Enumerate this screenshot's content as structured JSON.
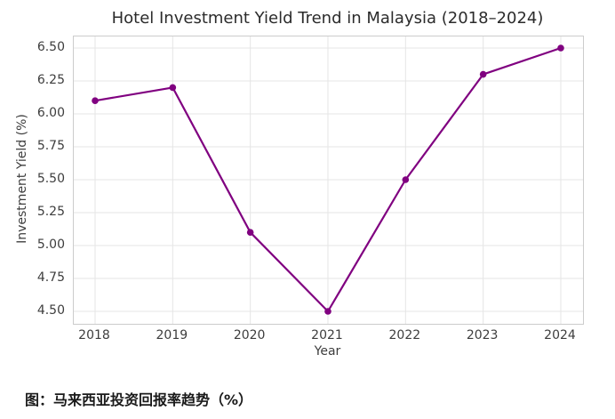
{
  "figure": {
    "caption": "图：马来西亚投资回报率趋势（%）"
  },
  "chart_data": {
    "type": "line",
    "title": "Hotel Investment Yield Trend in Malaysia (2018–2024)",
    "xlabel": "Year",
    "ylabel": "Investment Yield (%)",
    "x": [
      2018,
      2019,
      2020,
      2021,
      2022,
      2023,
      2024
    ],
    "series": [
      {
        "name": "Investment Yield",
        "values": [
          6.1,
          6.2,
          5.1,
          4.5,
          5.5,
          6.3,
          6.5
        ]
      }
    ],
    "yticks": [
      6.5,
      6.25,
      6.0,
      5.75,
      5.5,
      5.25,
      5.0,
      4.75,
      4.5
    ],
    "ylim": [
      4.4,
      6.6
    ],
    "grid": true,
    "legend": "none",
    "marker": "circle",
    "colors": {
      "line": "#800080",
      "marker": "#800080",
      "grid": "#e5e5e5",
      "spine": "#cccccc",
      "tick_text": "#3d3d3d",
      "title_text": "#2b2b2b",
      "caption_text": "#1a1a1a",
      "background": "#ffffff"
    }
  }
}
